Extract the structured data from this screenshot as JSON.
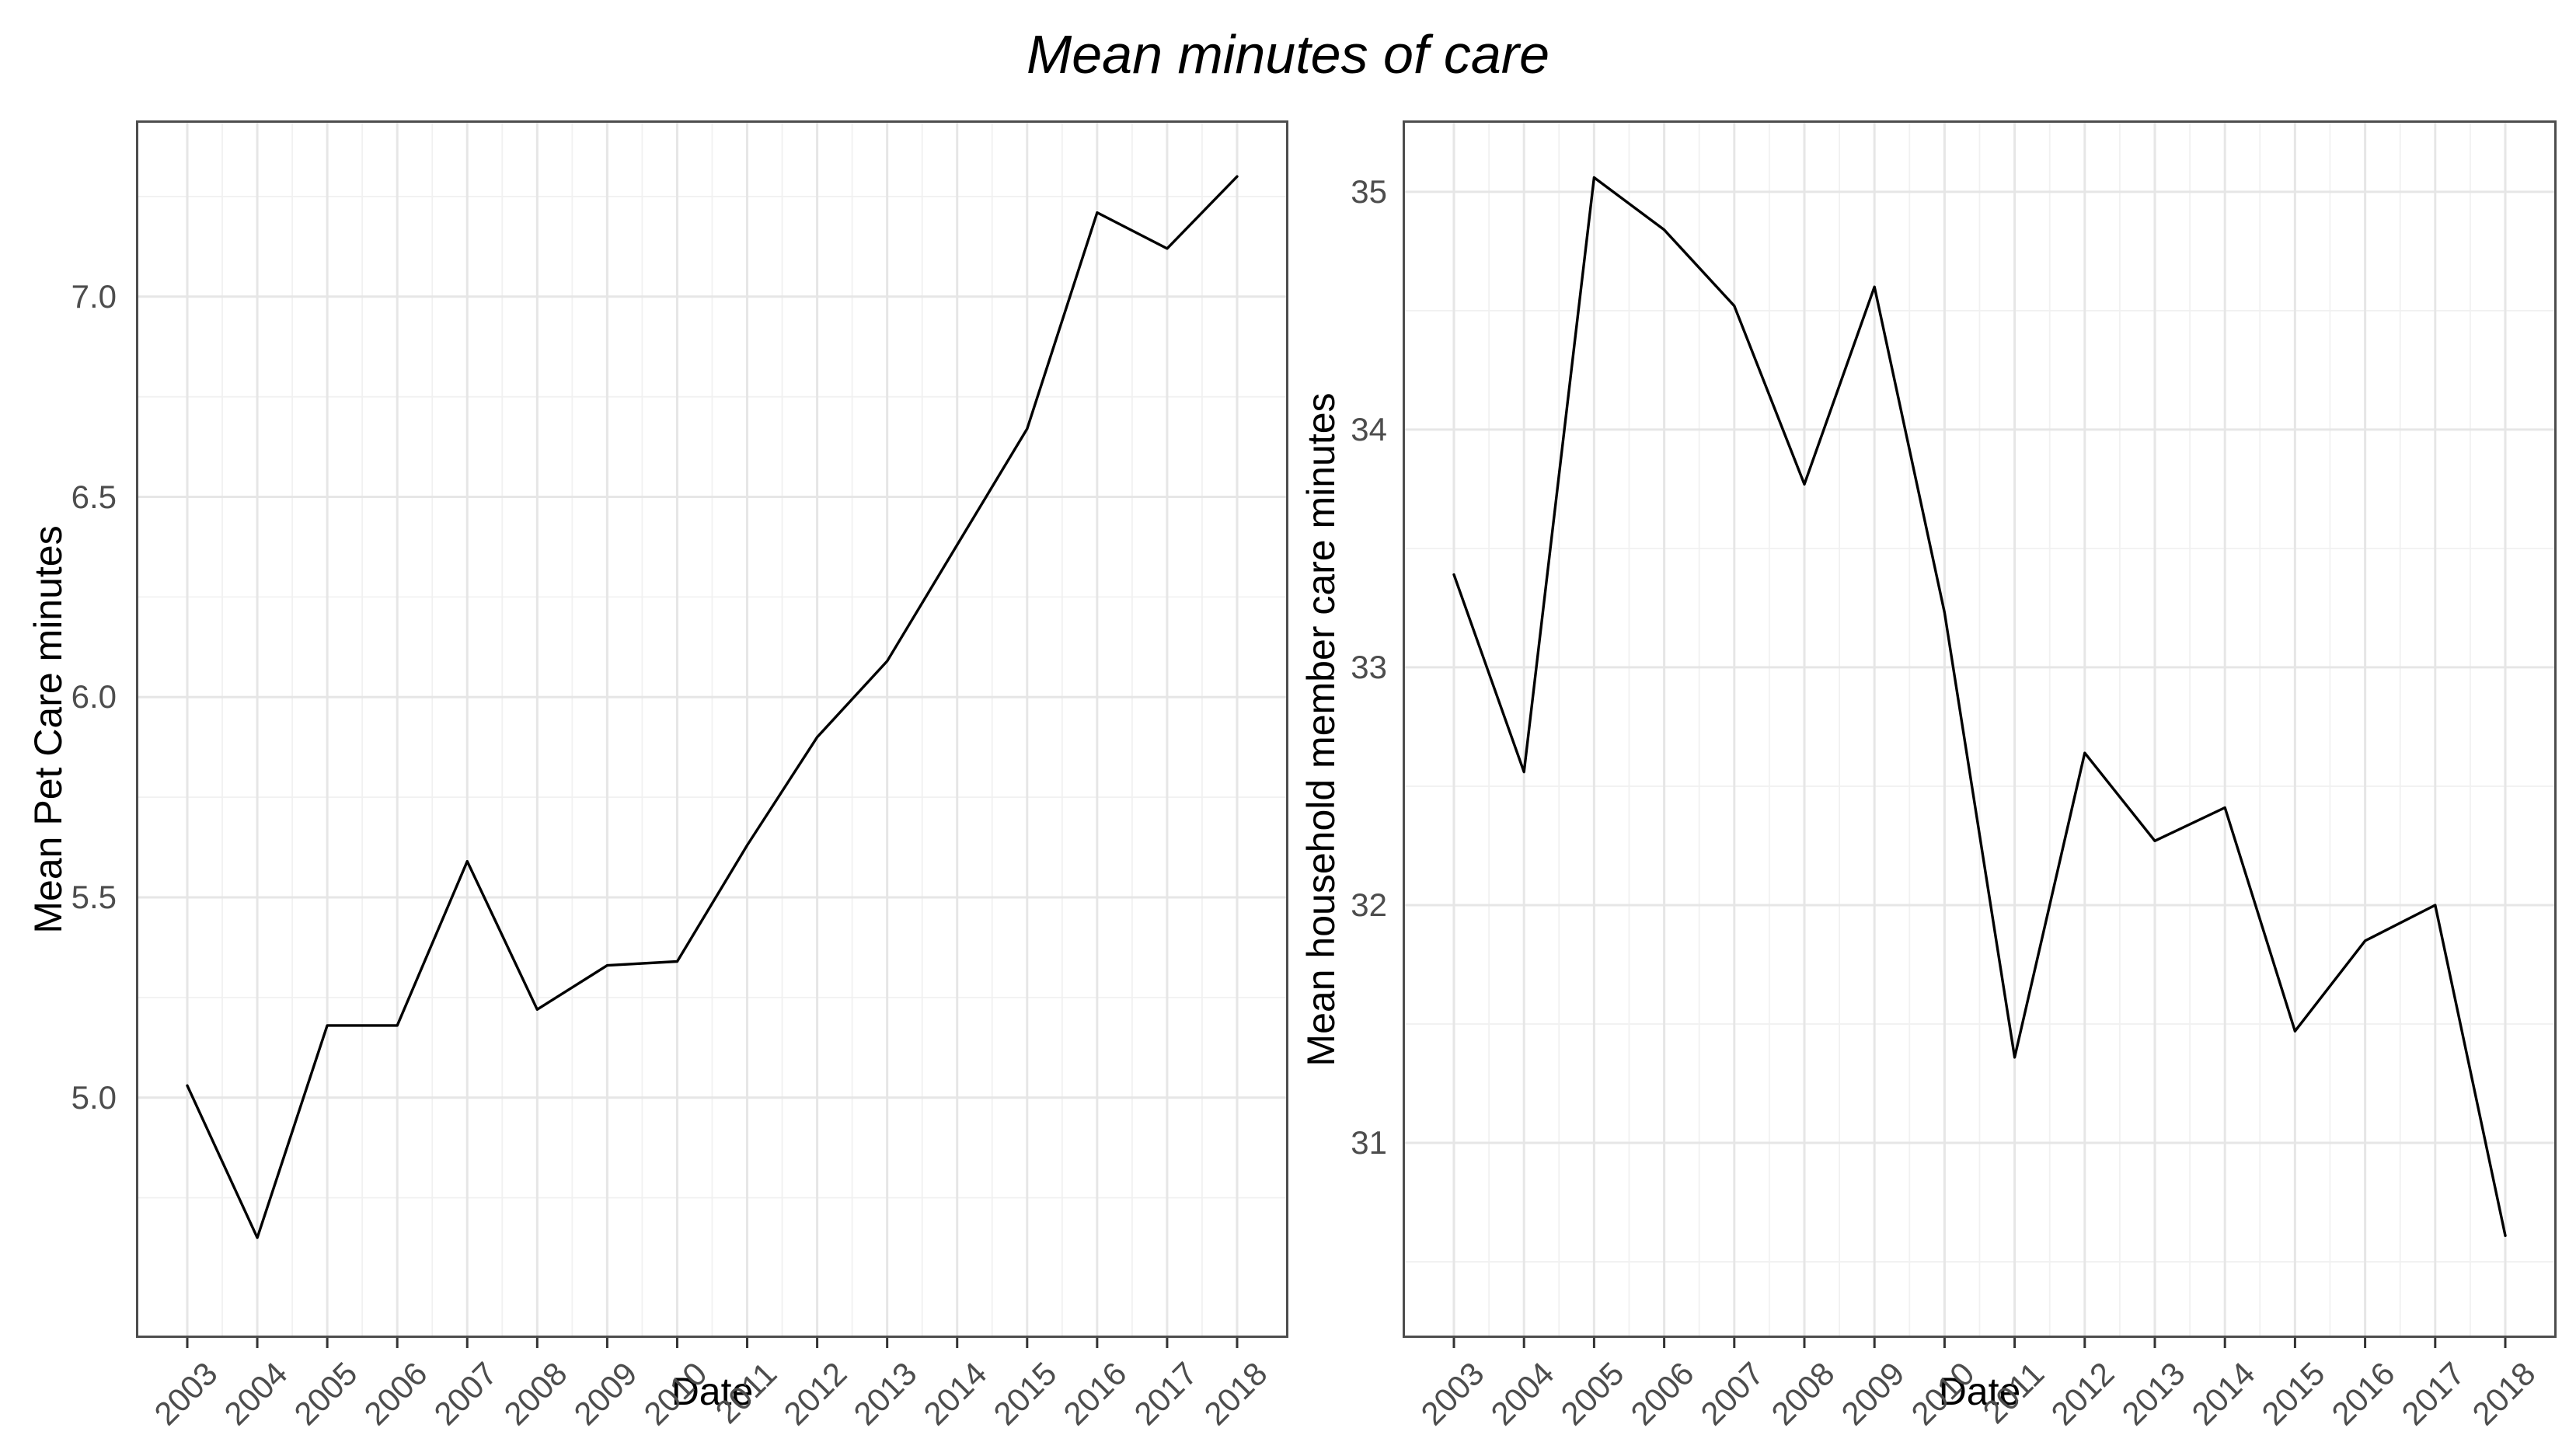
{
  "title": "Mean minutes of care",
  "colors": {
    "line": "#000000",
    "grid_major": "#e6e6e6",
    "grid_minor": "#f1f1f1",
    "panel_border": "#4d4d4d",
    "tick_mark": "#333333",
    "tick_label": "#4d4d4d",
    "axis_title": "#000000",
    "title": "#000000",
    "background": "#ffffff"
  },
  "chart_data": {
    "type": "line",
    "layout": "two-panel side-by-side, shared italic centered title, grid on (major + minor), no legend",
    "x": [
      2003,
      2004,
      2005,
      2006,
      2007,
      2008,
      2009,
      2010,
      2011,
      2012,
      2013,
      2014,
      2015,
      2016,
      2017,
      2018
    ],
    "x_tick_labels": [
      "2003",
      "2004",
      "2005",
      "2006",
      "2007",
      "2008",
      "2009",
      "2010",
      "2011",
      "2012",
      "2013",
      "2014",
      "2015",
      "2016",
      "2017",
      "2018"
    ],
    "charts": [
      {
        "name": "pet-care",
        "xlabel": "Date",
        "ylabel": "Mean Pet Care minutes",
        "series": [
          {
            "name": "Mean Pet Care minutes",
            "values": [
              5.03,
              4.65,
              5.18,
              5.18,
              5.59,
              5.22,
              5.33,
              5.34,
              5.63,
              5.9,
              6.09,
              6.38,
              6.67,
              7.21,
              7.12,
              7.3
            ]
          }
        ],
        "y_ticks": [
          5.0,
          5.5,
          6.0,
          6.5,
          7.0
        ],
        "y_tick_labels": [
          "5.0",
          "5.5",
          "6.0",
          "6.5",
          "7.0"
        ],
        "y_minor": [
          4.75,
          5.25,
          5.75,
          6.25,
          6.75,
          7.25
        ],
        "ylim": [
          4.4,
          7.44
        ]
      },
      {
        "name": "household-member-care",
        "xlabel": "Date",
        "ylabel": "Mean household member care minutes",
        "series": [
          {
            "name": "Mean household member care minutes",
            "values": [
              33.39,
              32.56,
              35.06,
              34.84,
              34.52,
              33.77,
              34.6,
              33.23,
              31.36,
              32.64,
              32.27,
              32.41,
              31.47,
              31.85,
              32.0,
              30.61
            ]
          }
        ],
        "y_ticks": [
          31,
          32,
          33,
          34,
          35
        ],
        "y_tick_labels": [
          "31",
          "32",
          "33",
          "34",
          "35"
        ],
        "y_minor": [
          30.5,
          31.5,
          32.5,
          33.5,
          34.5
        ],
        "ylim": [
          30.18,
          35.3
        ]
      }
    ]
  }
}
